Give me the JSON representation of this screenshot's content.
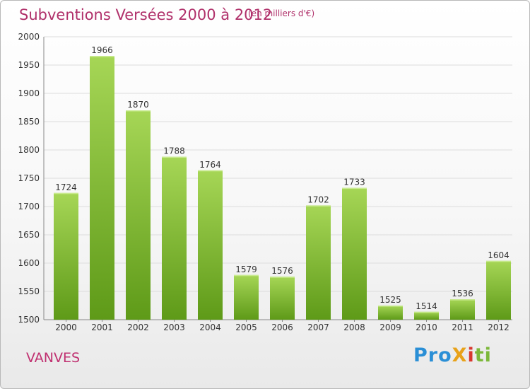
{
  "header": {
    "title": "Subventions Versées 2000 à 2012",
    "subtitle": "(en milliers d'€)"
  },
  "footer": {
    "commune": "VANVES",
    "logo_text": "ProXiti"
  },
  "colors": {
    "title": "#b0306a",
    "bar_light": "#a6d656",
    "bar_dark": "#5e9a18"
  },
  "chart_data": {
    "type": "bar",
    "categories": [
      "2000",
      "2001",
      "2002",
      "2003",
      "2004",
      "2005",
      "2006",
      "2007",
      "2008",
      "2009",
      "2010",
      "2011",
      "2012"
    ],
    "values": [
      1724,
      1966,
      1870,
      1788,
      1764,
      1579,
      1576,
      1702,
      1733,
      1525,
      1514,
      1536,
      1604
    ],
    "title": "Subventions Versées 2000 à 2012",
    "subtitle": "(en milliers d'€)",
    "ylim": [
      1500,
      2000
    ],
    "yticks": [
      1500,
      1550,
      1600,
      1650,
      1700,
      1750,
      1800,
      1850,
      1900,
      1950,
      2000
    ],
    "grid": true,
    "legend": "none"
  }
}
